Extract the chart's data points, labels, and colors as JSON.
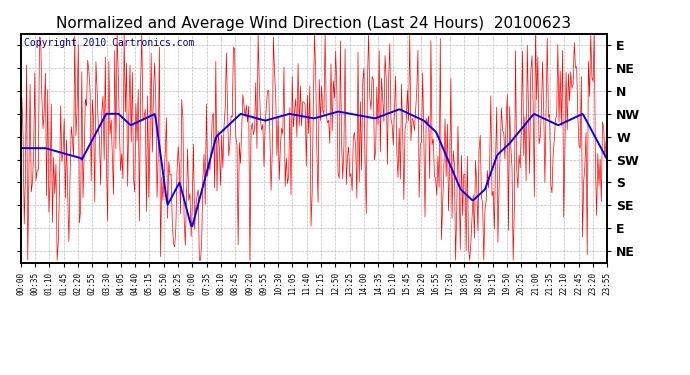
{
  "title": "Normalized and Average Wind Direction (Last 24 Hours)  20100623",
  "copyright": "Copyright 2010 Cartronics.com",
  "ylabel_texts": [
    "E",
    "NE",
    "N",
    "NW",
    "W",
    "SW",
    "S",
    "SE",
    "E",
    "NE"
  ],
  "ylabel_values": [
    9,
    8,
    7,
    6,
    5,
    4,
    3,
    2,
    1,
    0
  ],
  "ylim": [
    -0.5,
    9.5
  ],
  "background_color": "#ffffff",
  "grid_color": "#bbbbbb",
  "red_color": "#ff0000",
  "blue_color": "#0000ff",
  "title_fontsize": 11,
  "copyright_fontsize": 7,
  "time_labels": [
    "00:00",
    "00:35",
    "01:10",
    "01:45",
    "02:20",
    "02:55",
    "03:30",
    "04:05",
    "04:40",
    "05:15",
    "05:50",
    "06:25",
    "07:00",
    "07:35",
    "08:10",
    "08:45",
    "09:20",
    "09:55",
    "10:30",
    "11:05",
    "11:40",
    "12:15",
    "12:50",
    "13:25",
    "14:00",
    "14:35",
    "15:10",
    "15:45",
    "16:20",
    "16:55",
    "17:30",
    "18:05",
    "18:40",
    "19:15",
    "19:50",
    "20:25",
    "21:00",
    "21:35",
    "22:10",
    "22:45",
    "23:20",
    "23:55"
  ]
}
